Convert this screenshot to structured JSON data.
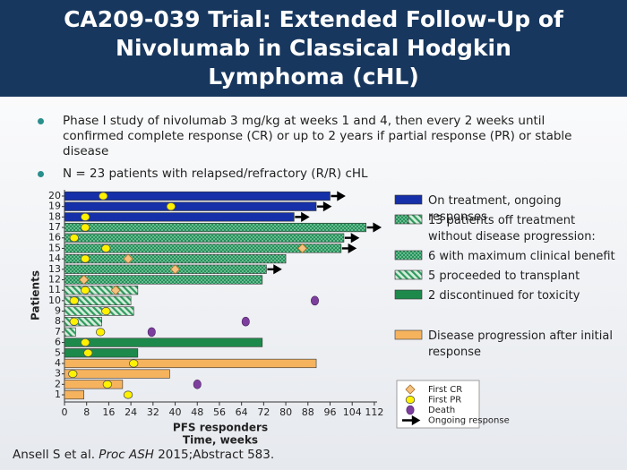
{
  "title": "CA209-039 Trial: Extended Follow-Up of Nivolumab in Classical Hodgkin Lymphoma (cHL)",
  "bullets": [
    "Phase I study of nivolumab 3 mg/kg at weeks 1 and 4, then every 2 weeks until confirmed complete response (CR) or up to 2 years if partial response (PR) or stable disease",
    "N = 23 patients with relapsed/refractory (R/R) cHL"
  ],
  "citation": {
    "authors": "Ansell S et al.",
    "journal": "Proc ASH",
    "rest": "2015;Abstract 583."
  },
  "chart_data": {
    "type": "swimmer",
    "xlabel": "PFS responders",
    "xlabel2": "Time, weeks",
    "ylabel": "Patients",
    "categories": [
      "1",
      "2",
      "3",
      "4",
      "5",
      "6",
      "7",
      "8",
      "9",
      "10",
      "11",
      "12",
      "13",
      "14",
      "15",
      "16",
      "17",
      "18",
      "19",
      "20"
    ],
    "xlim": [
      0,
      113
    ],
    "xticks": [
      0,
      8,
      16,
      24,
      32,
      40,
      48,
      56,
      64,
      72,
      80,
      88,
      96,
      104,
      112
    ],
    "legend_header": "13 patients off treatment without disease progression:",
    "series": [
      {
        "name": "On treatment, ongoing responses",
        "color": "#1530a8",
        "pattern": "solid",
        "values": [
          null,
          null,
          null,
          null,
          null,
          null,
          null,
          null,
          null,
          null,
          null,
          null,
          null,
          null,
          null,
          null,
          null,
          83,
          91,
          96
        ]
      },
      {
        "name": "6 with maximum clinical benefit",
        "color": "#23935a",
        "pattern": "dots",
        "values": [
          null,
          null,
          null,
          null,
          null,
          null,
          null,
          null,
          null,
          null,
          null,
          71.5,
          73,
          80,
          100,
          101,
          109,
          null,
          null,
          null
        ]
      },
      {
        "name": "5 proceeded to transplant",
        "color": "#2f9a5e",
        "pattern": "hatch",
        "values": [
          null,
          null,
          null,
          null,
          null,
          null,
          4,
          13.5,
          25,
          24,
          26.5,
          null,
          null,
          null,
          null,
          null,
          null,
          null,
          null,
          null
        ]
      },
      {
        "name": "2 discontinued for toxicity",
        "color": "#1d8a4b",
        "pattern": "solid",
        "values": [
          null,
          null,
          null,
          null,
          26.5,
          71.5,
          null,
          null,
          null,
          null,
          null,
          null,
          null,
          null,
          null,
          null,
          null,
          null,
          null,
          null
        ]
      },
      {
        "name": "Disease progression after initial response",
        "color": "#f6b35e",
        "pattern": "solid",
        "values": [
          7,
          21,
          38,
          91,
          null,
          null,
          null,
          null,
          null,
          null,
          null,
          null,
          null,
          null,
          null,
          null,
          null,
          null,
          null,
          null
        ]
      }
    ],
    "markers": [
      {
        "name": "First CR",
        "shape": "diamond",
        "color": "#f5c27e",
        "values": [
          null,
          null,
          null,
          null,
          null,
          null,
          null,
          null,
          null,
          null,
          18.5,
          7,
          40,
          23,
          86,
          null,
          null,
          null,
          null,
          null
        ]
      },
      {
        "name": "First PR",
        "shape": "circle",
        "color": "#fff200",
        "values": [
          23,
          15.5,
          3,
          25,
          8.5,
          7.5,
          13,
          3.5,
          15,
          3.5,
          7.5,
          null,
          null,
          7.5,
          15,
          3.5,
          7.5,
          7.5,
          38.5,
          14
        ]
      },
      {
        "name": "Death",
        "shape": "oval",
        "color": "#7d3f9e",
        "values": [
          null,
          48,
          null,
          null,
          null,
          null,
          31.5,
          65.5,
          null,
          90.5,
          null,
          null,
          null,
          null,
          null,
          null,
          null,
          null,
          null,
          null
        ]
      }
    ],
    "ongoing": {
      "name": "Ongoing response",
      "values": [
        false,
        false,
        false,
        false,
        false,
        false,
        false,
        false,
        false,
        false,
        false,
        false,
        true,
        false,
        true,
        true,
        true,
        true,
        true,
        true
      ]
    }
  }
}
